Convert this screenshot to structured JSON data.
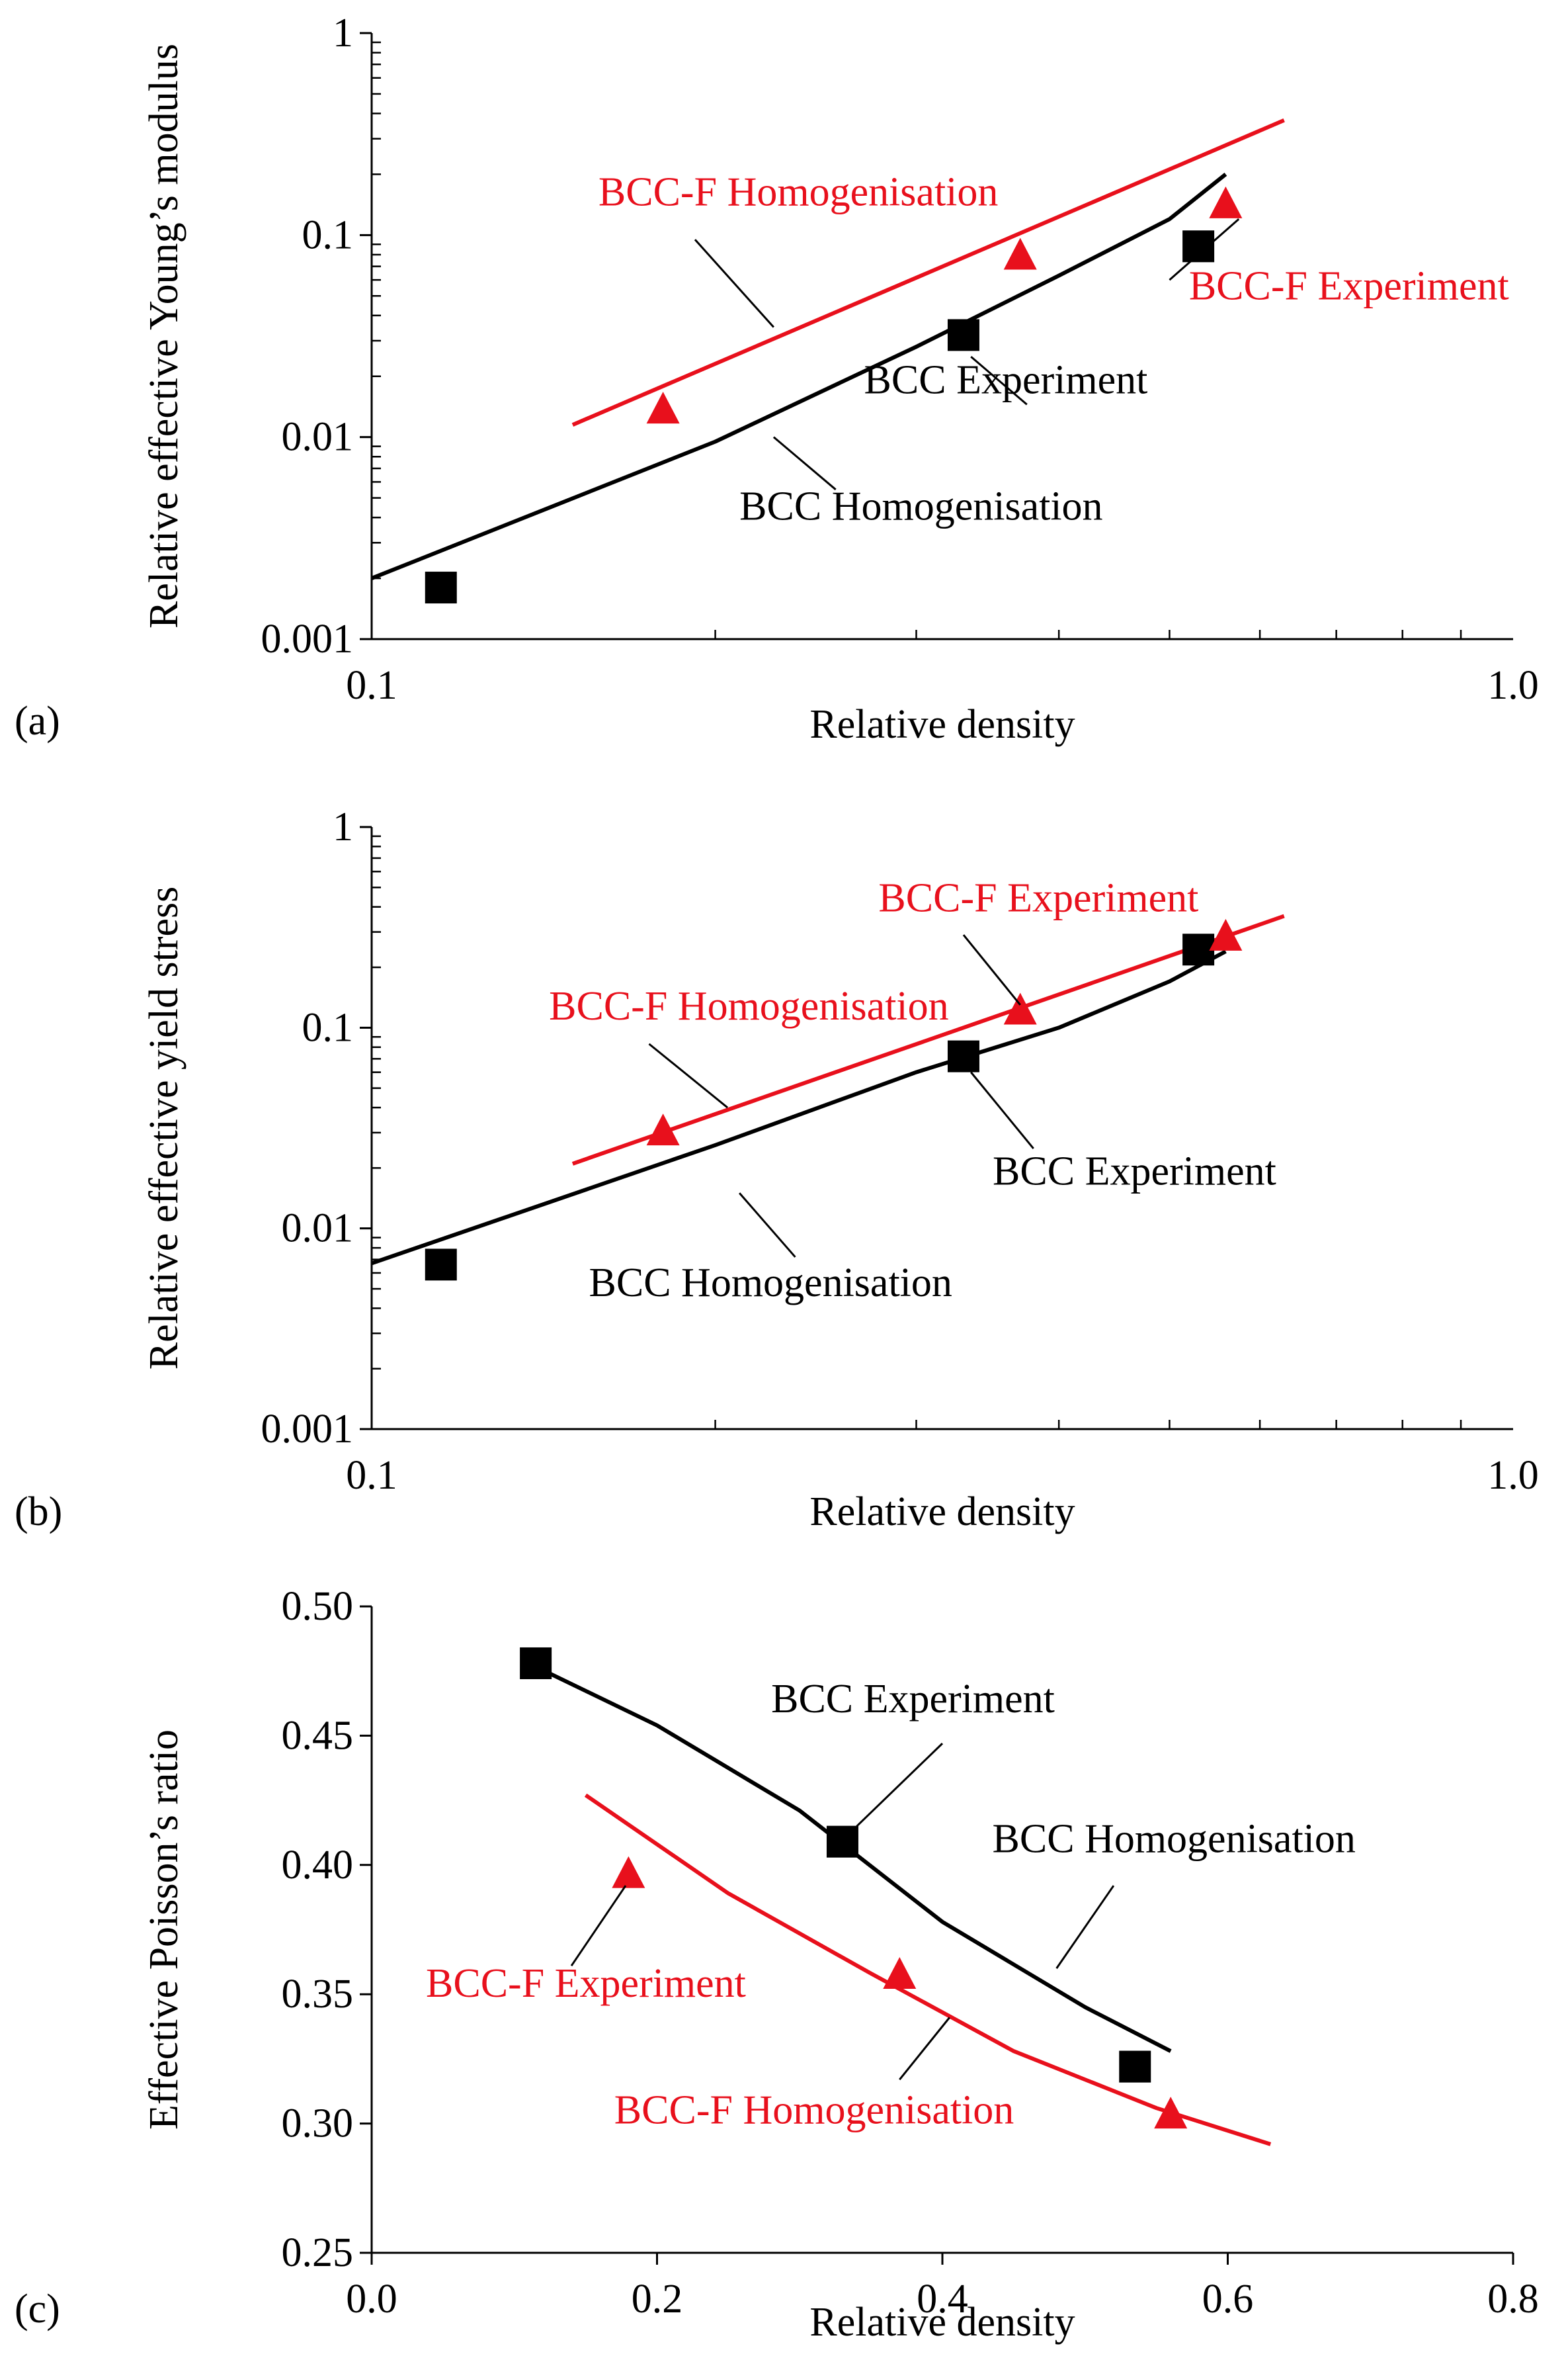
{
  "colors": {
    "bcc": "#000000",
    "bccf": "#e8101c",
    "axis": "#000000"
  },
  "chart_data": [
    {
      "id": "a",
      "panel_label": "(a)",
      "type": "scatter",
      "xscale": "log",
      "yscale": "log",
      "xlim": [
        0.1,
        1.0
      ],
      "ylim": [
        0.001,
        1
      ],
      "xlabel": "Relative density",
      "ylabel": "Relative effective Young’s modulus",
      "xticks": [
        {
          "v": 0.1,
          "label": "0.1"
        },
        {
          "v": 1.0,
          "label": "1.0"
        }
      ],
      "yticks": [
        {
          "v": 0.001,
          "label": "0.001"
        },
        {
          "v": 0.01,
          "label": "0.01"
        },
        {
          "v": 0.1,
          "label": "0.1"
        },
        {
          "v": 1,
          "label": "1"
        }
      ],
      "series": [
        {
          "name": "BCC Homogenisation",
          "kind": "line",
          "color": "#000000",
          "x": [
            0.1,
            0.2,
            0.3,
            0.4,
            0.5,
            0.56
          ],
          "y": [
            0.002,
            0.0095,
            0.028,
            0.063,
            0.12,
            0.2
          ]
        },
        {
          "name": "BCC-F Homogenisation",
          "kind": "line",
          "color": "#e8101c",
          "x": [
            0.15,
            0.63
          ],
          "y": [
            0.0115,
            0.37
          ]
        },
        {
          "name": "BCC Experiment",
          "kind": "square",
          "color": "#000000",
          "x": [
            0.115,
            0.33,
            0.53
          ],
          "y": [
            0.0018,
            0.032,
            0.088
          ]
        },
        {
          "name": "BCC-F Experiment",
          "kind": "triangle",
          "color": "#e8101c",
          "x": [
            0.18,
            0.37,
            0.56
          ],
          "y": [
            0.0135,
            0.078,
            0.14
          ]
        }
      ],
      "annotations": [
        {
          "text": "BCC-F Homogenisation",
          "color": "#e8101c",
          "tx": 0.158,
          "ty": 0.14,
          "anchor": "start",
          "line": [
            0.192,
            0.095,
            0.225,
            0.035
          ]
        },
        {
          "text": "BCC-F Experiment",
          "color": "#e8101c",
          "tx": 0.52,
          "ty": 0.048,
          "anchor": "start",
          "line": [
            0.5,
            0.06,
            0.575,
            0.12
          ]
        },
        {
          "text": "BCC Experiment",
          "color": "#000000",
          "tx": 0.27,
          "ty": 0.0165,
          "anchor": "start",
          "line": [
            0.375,
            0.0145,
            0.335,
            0.025
          ]
        },
        {
          "text": "BCC Homogenisation",
          "color": "#000000",
          "tx": 0.21,
          "ty": 0.0039,
          "anchor": "start",
          "line": [
            0.255,
            0.0055,
            0.225,
            0.01
          ]
        }
      ]
    },
    {
      "id": "b",
      "panel_label": "(b)",
      "type": "scatter",
      "xscale": "log",
      "yscale": "log",
      "xlim": [
        0.1,
        1.0
      ],
      "ylim": [
        0.001,
        1
      ],
      "xlabel": "Relative density",
      "ylabel": "Relative effective yield stress",
      "xticks": [
        {
          "v": 0.1,
          "label": "0.1"
        },
        {
          "v": 1.0,
          "label": "1.0"
        }
      ],
      "yticks": [
        {
          "v": 0.001,
          "label": "0.001"
        },
        {
          "v": 0.01,
          "label": "0.01"
        },
        {
          "v": 0.1,
          "label": "0.1"
        },
        {
          "v": 1,
          "label": "1"
        }
      ],
      "series": [
        {
          "name": "BCC Homogenisation",
          "kind": "line",
          "color": "#000000",
          "x": [
            0.1,
            0.2,
            0.3,
            0.4,
            0.5,
            0.56
          ],
          "y": [
            0.0067,
            0.026,
            0.06,
            0.1,
            0.17,
            0.24
          ]
        },
        {
          "name": "BCC-F Homogenisation",
          "kind": "line",
          "color": "#e8101c",
          "x": [
            0.15,
            0.63
          ],
          "y": [
            0.021,
            0.36
          ]
        },
        {
          "name": "BCC Experiment",
          "kind": "square",
          "color": "#000000",
          "x": [
            0.115,
            0.33,
            0.53
          ],
          "y": [
            0.0066,
            0.072,
            0.245
          ]
        },
        {
          "name": "BCC-F Experiment",
          "kind": "triangle",
          "color": "#e8101c",
          "x": [
            0.18,
            0.37,
            0.56
          ],
          "y": [
            0.03,
            0.12,
            0.28
          ]
        }
      ],
      "annotations": [
        {
          "text": "BCC-F Experiment",
          "color": "#e8101c",
          "tx": 0.278,
          "ty": 0.38,
          "anchor": "start",
          "line": [
            0.33,
            0.29,
            0.37,
            0.13
          ]
        },
        {
          "text": "BCC-F Homogenisation",
          "color": "#e8101c",
          "tx": 0.143,
          "ty": 0.11,
          "anchor": "start",
          "line": [
            0.175,
            0.083,
            0.205,
            0.04
          ]
        },
        {
          "text": "BCC Experiment",
          "color": "#000000",
          "tx": 0.35,
          "ty": 0.0165,
          "anchor": "start",
          "line": [
            0.38,
            0.025,
            0.335,
            0.06
          ]
        },
        {
          "text": "BCC Homogenisation",
          "color": "#000000",
          "tx": 0.155,
          "ty": 0.0046,
          "anchor": "start",
          "line": [
            0.235,
            0.0072,
            0.21,
            0.015
          ]
        }
      ]
    },
    {
      "id": "c",
      "panel_label": "(c)",
      "type": "scatter",
      "xscale": "linear",
      "yscale": "linear",
      "xlim": [
        0.0,
        0.8
      ],
      "ylim": [
        0.25,
        0.5
      ],
      "xlabel": "Relative density",
      "ylabel": "Effective Poisson’s ratio",
      "xticks": [
        {
          "v": 0.0,
          "label": "0.0"
        },
        {
          "v": 0.2,
          "label": "0.2"
        },
        {
          "v": 0.4,
          "label": "0.4"
        },
        {
          "v": 0.6,
          "label": "0.6"
        },
        {
          "v": 0.8,
          "label": "0.8"
        }
      ],
      "yticks": [
        {
          "v": 0.25,
          "label": "0.25"
        },
        {
          "v": 0.3,
          "label": "0.30"
        },
        {
          "v": 0.35,
          "label": "0.35"
        },
        {
          "v": 0.4,
          "label": "0.40"
        },
        {
          "v": 0.45,
          "label": "0.45"
        },
        {
          "v": 0.5,
          "label": "0.50"
        }
      ],
      "series": [
        {
          "name": "BCC Homogenisation",
          "kind": "line",
          "color": "#000000",
          "x": [
            0.11,
            0.2,
            0.3,
            0.4,
            0.5,
            0.56
          ],
          "y": [
            0.478,
            0.454,
            0.421,
            0.378,
            0.345,
            0.328
          ]
        },
        {
          "name": "BCC-F Homogenisation",
          "kind": "line",
          "color": "#e8101c",
          "x": [
            0.15,
            0.25,
            0.35,
            0.45,
            0.55,
            0.63
          ],
          "y": [
            0.427,
            0.389,
            0.358,
            0.328,
            0.306,
            0.292
          ]
        },
        {
          "name": "BCC Experiment",
          "kind": "square",
          "color": "#000000",
          "x": [
            0.115,
            0.33,
            0.535
          ],
          "y": [
            0.478,
            0.409,
            0.322
          ]
        },
        {
          "name": "BCC-F Experiment",
          "kind": "triangle",
          "color": "#e8101c",
          "x": [
            0.18,
            0.37,
            0.56
          ],
          "y": [
            0.396,
            0.357,
            0.303
          ]
        }
      ],
      "annotations": [
        {
          "text": "BCC Experiment",
          "color": "#000000",
          "tx": 0.28,
          "ty": 0.459,
          "anchor": "start",
          "line": [
            0.4,
            0.447,
            0.34,
            0.415
          ]
        },
        {
          "text": "BCC Homogenisation",
          "color": "#000000",
          "tx": 0.435,
          "ty": 0.405,
          "anchor": "start",
          "line": [
            0.52,
            0.392,
            0.48,
            0.36
          ]
        },
        {
          "text": "BCC-F Experiment",
          "color": "#e8101c",
          "tx": 0.038,
          "ty": 0.349,
          "anchor": "start",
          "line": [
            0.14,
            0.361,
            0.178,
            0.392
          ]
        },
        {
          "text": "BCC-F Homogenisation",
          "color": "#e8101c",
          "tx": 0.17,
          "ty": 0.3,
          "anchor": "start",
          "line": [
            0.37,
            0.317,
            0.405,
            0.341
          ]
        }
      ]
    }
  ]
}
